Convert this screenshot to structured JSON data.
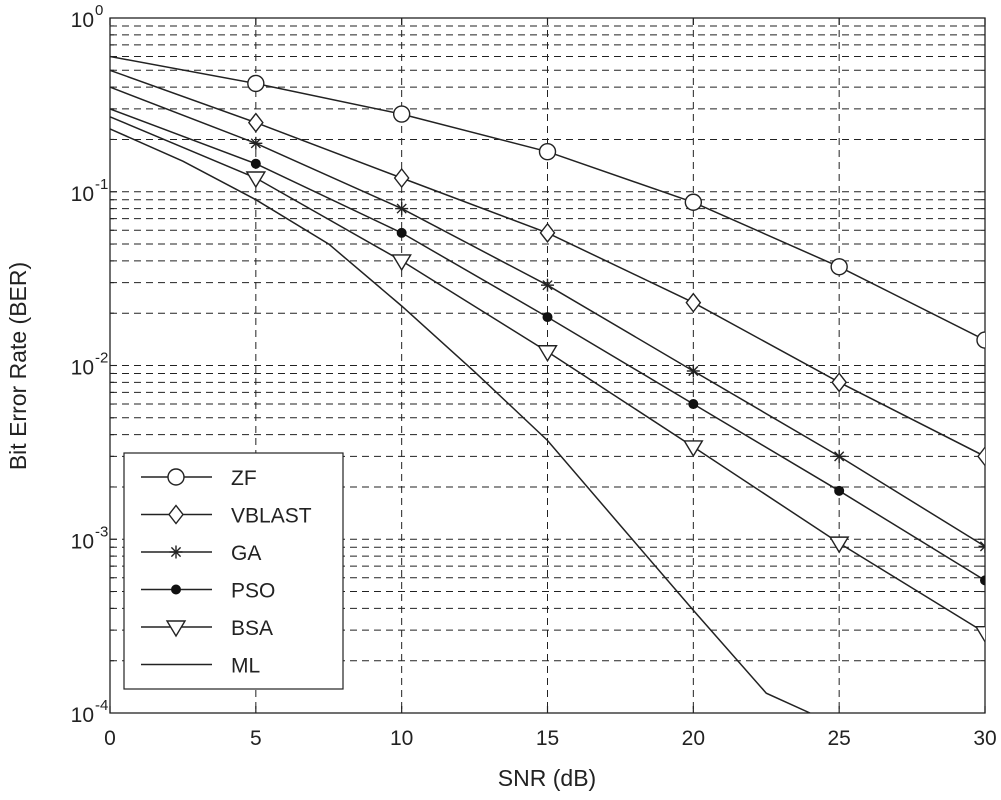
{
  "chart_data": {
    "type": "line",
    "title": "",
    "xlabel": "SNR (dB)",
    "ylabel": "Bit Error Rate (BER)",
    "xlim": [
      0,
      30
    ],
    "ylim": [
      0.0001,
      1
    ],
    "yscale": "log",
    "grid": true,
    "legend_position": "bottom-left",
    "x_ticks": [
      {
        "value": 0,
        "label": "0"
      },
      {
        "value": 5,
        "label": "5"
      },
      {
        "value": 10,
        "label": "10"
      },
      {
        "value": 15,
        "label": "15"
      },
      {
        "value": 20,
        "label": "20"
      },
      {
        "value": 25,
        "label": "25"
      },
      {
        "value": 30,
        "label": "30"
      }
    ],
    "y_ticks": [
      {
        "value": 1,
        "base": "10",
        "exp": "0"
      },
      {
        "value": 0.1,
        "base": "10",
        "exp": "-1"
      },
      {
        "value": 0.01,
        "base": "10",
        "exp": "-2"
      },
      {
        "value": 0.001,
        "base": "10",
        "exp": "-3"
      },
      {
        "value": 0.0001,
        "base": "10",
        "exp": "-4"
      }
    ],
    "series": [
      {
        "name": "ZF",
        "marker": "circle",
        "x": [
          0,
          5,
          10,
          15,
          20,
          25,
          30
        ],
        "y": [
          0.6,
          0.42,
          0.28,
          0.17,
          0.087,
          0.037,
          0.014
        ]
      },
      {
        "name": "VBLAST",
        "marker": "diamond",
        "x": [
          0,
          5,
          10,
          15,
          20,
          25,
          30
        ],
        "y": [
          0.5,
          0.25,
          0.12,
          0.058,
          0.023,
          0.008,
          0.003
        ]
      },
      {
        "name": "GA",
        "marker": "star",
        "x": [
          0,
          5,
          10,
          15,
          20,
          25,
          30
        ],
        "y": [
          0.4,
          0.19,
          0.08,
          0.029,
          0.0093,
          0.003,
          0.00091
        ]
      },
      {
        "name": "PSO",
        "marker": "dot",
        "x": [
          0,
          5,
          10,
          15,
          20,
          25,
          30
        ],
        "y": [
          0.3,
          0.145,
          0.058,
          0.019,
          0.006,
          0.0019,
          0.00058
        ]
      },
      {
        "name": "BSA",
        "marker": "triangle-down",
        "x": [
          0,
          5,
          10,
          15,
          20,
          25,
          30
        ],
        "y": [
          0.27,
          0.12,
          0.04,
          0.012,
          0.0034,
          0.00095,
          0.00029
        ]
      },
      {
        "name": "ML",
        "marker": "none",
        "x": [
          0,
          2.5,
          5,
          7.5,
          10,
          12.5,
          15,
          17.5,
          20,
          22.5,
          24
        ],
        "y": [
          0.23,
          0.15,
          0.09,
          0.05,
          0.022,
          0.0092,
          0.0037,
          0.0012,
          0.00039,
          0.00013,
          0.0001
        ]
      }
    ]
  }
}
